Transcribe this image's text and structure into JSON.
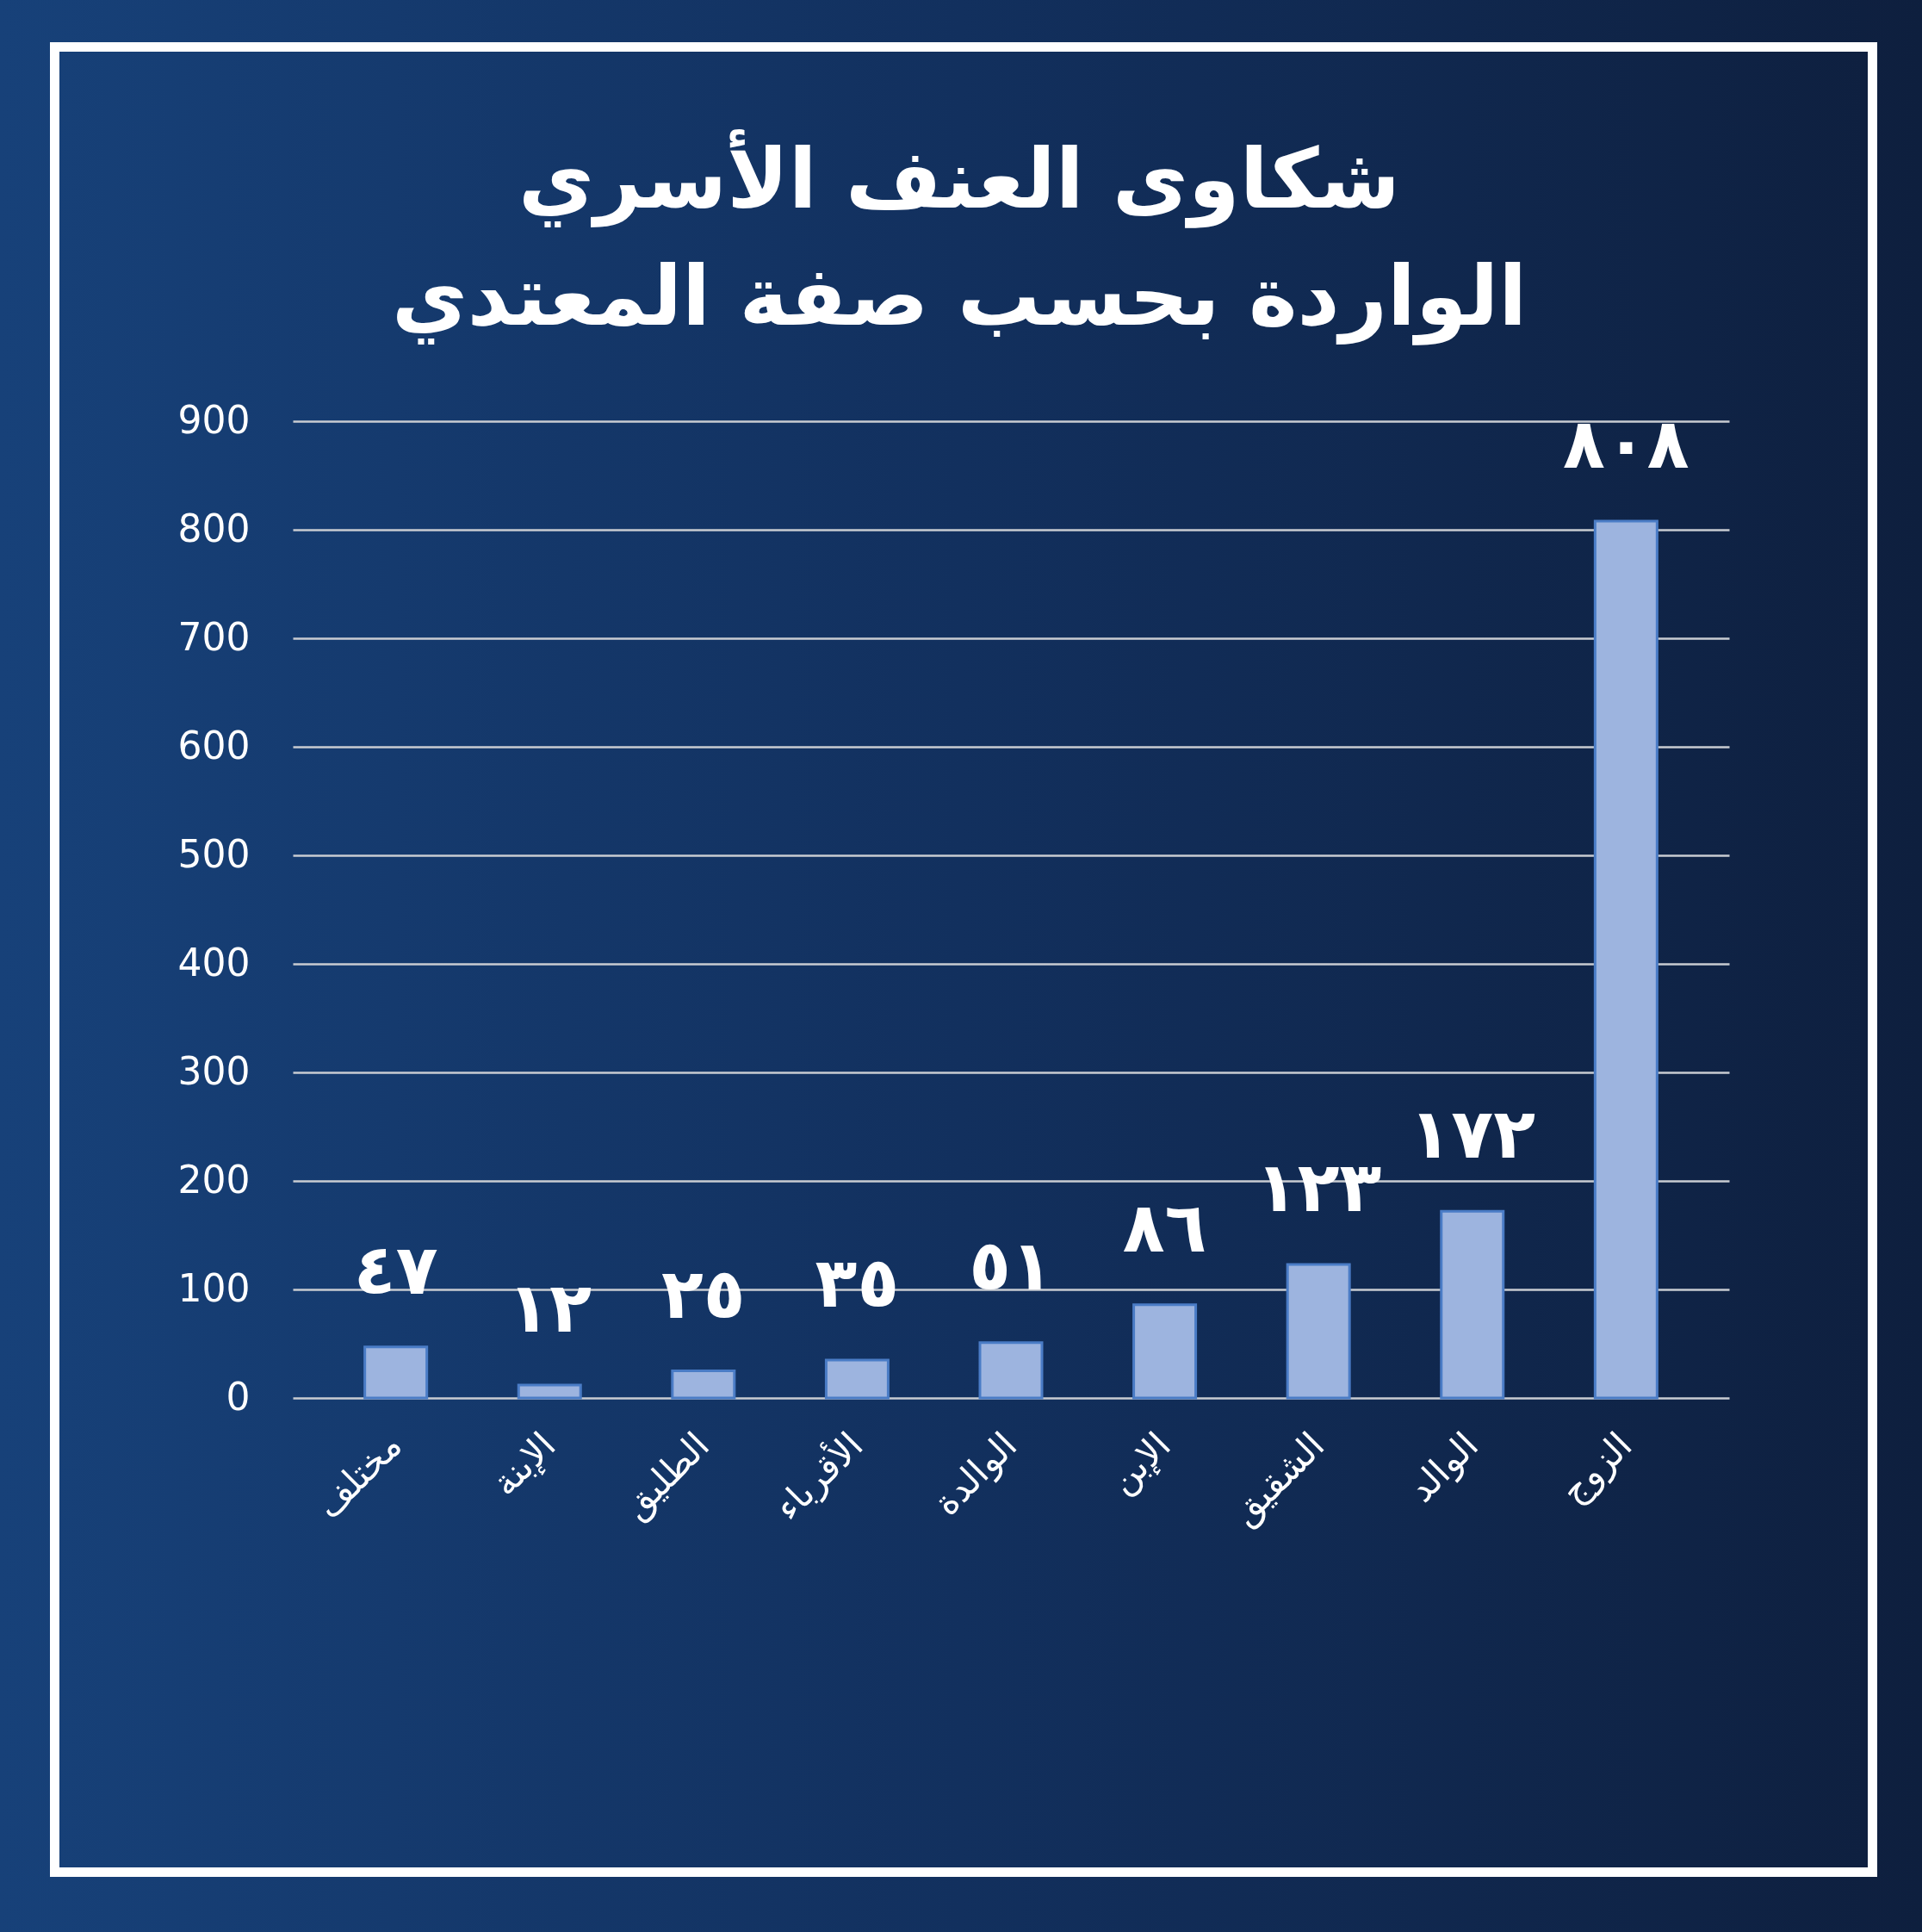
{
  "chart_data": {
    "type": "bar",
    "title": "شكاوى العنف الأسري",
    "subtitle": "الواردة بحسب صفة المعتدي",
    "categories": [
      "مختلف",
      "الإبنة",
      "الطليق",
      "الأقرباء",
      "الوالدة",
      "الإبن",
      "الشقيق",
      "الوالد",
      "الزوج"
    ],
    "values": [
      47,
      12,
      25,
      35,
      51,
      86,
      123,
      172,
      808
    ],
    "value_labels": [
      "٤٧",
      "١٢",
      "٢٥",
      "٣٥",
      "٥١",
      "٨٦",
      "١٢٣",
      "١٧٢",
      "٨٠٨"
    ],
    "color": "#9db4df",
    "ylim": [
      0,
      900
    ],
    "yticks": [
      0,
      100,
      200,
      300,
      400,
      500,
      600,
      700,
      800,
      900
    ],
    "grid": "y"
  }
}
